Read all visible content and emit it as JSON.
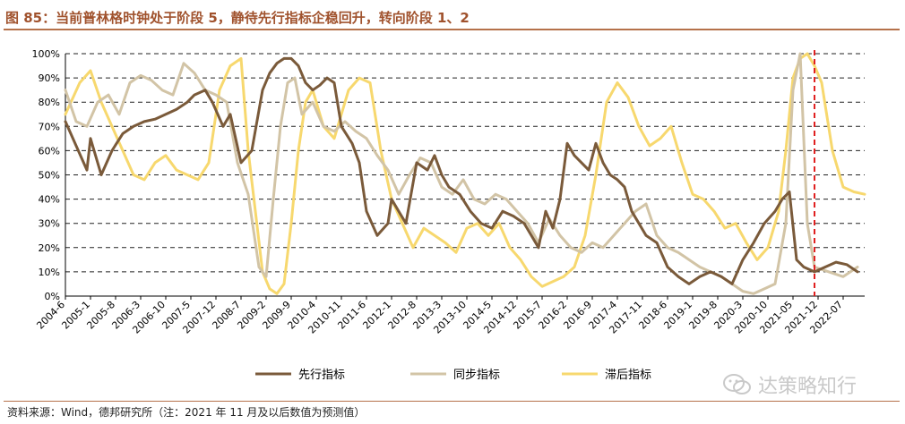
{
  "title": "图 85：当前普林格时钟处于阶段 5，静待先行指标企稳回升，转向阶段 1、2",
  "source": "资料来源：Wind，德邦研究所（注：2021 年 11 月及以后数值为预测值）",
  "watermark": "达策略知行",
  "colors": {
    "leading": "#7a5a3a",
    "coincident": "#d2c4a6",
    "lagging": "#f7d86e",
    "marker": "#e02020",
    "grid": "#222222"
  },
  "chart_data": {
    "type": "line",
    "title": "图 85：当前普林格时钟处于阶段 5，静待先行指标企稳回升，转向阶段 1、2",
    "ylim": [
      0,
      100
    ],
    "y_ticks": [
      "0%",
      "10%",
      "20%",
      "30%",
      "40%",
      "50%",
      "60%",
      "70%",
      "80%",
      "90%",
      "100%"
    ],
    "x_ticks": [
      "2004-6",
      "2005-1",
      "2005-8",
      "2006-3",
      "2006-10",
      "2007-5",
      "2007-12",
      "2008-7",
      "2009-2",
      "2009-9",
      "2010-4",
      "2010-11",
      "2011-6",
      "2012-1",
      "2012-8",
      "2013-3",
      "2013-10",
      "2014-5",
      "2014-12",
      "2015-7",
      "2016-2",
      "2016-9",
      "2017-4",
      "2017-11",
      "2018-6",
      "2019-1",
      "2019-8",
      "2020-3",
      "2020-10",
      "2021-05",
      "2021-12",
      "2022-07"
    ],
    "x_range": [
      "2004-6",
      "2023-1"
    ],
    "grid": "horizontal dashed",
    "legend_position": "bottom",
    "marker_line": {
      "x": "2021-11",
      "style": "red dashed vertical"
    },
    "series": [
      {
        "name": "先行指标",
        "x": [
          "2004-6",
          "2004-9",
          "2004-12",
          "2005-1",
          "2005-4",
          "2005-7",
          "2005-10",
          "2006-1",
          "2006-4",
          "2006-7",
          "2006-10",
          "2007-1",
          "2007-4",
          "2007-6",
          "2007-9",
          "2007-11",
          "2008-2",
          "2008-4",
          "2008-7",
          "2008-10",
          "2009-1",
          "2009-3",
          "2009-5",
          "2009-7",
          "2009-9",
          "2009-11",
          "2010-1",
          "2010-3",
          "2010-5",
          "2010-7",
          "2010-9",
          "2010-11",
          "2011-2",
          "2011-4",
          "2011-6",
          "2011-9",
          "2011-12",
          "2012-1",
          "2012-3",
          "2012-5",
          "2012-8",
          "2012-11",
          "2013-1",
          "2013-3",
          "2013-5",
          "2013-8",
          "2013-11",
          "2014-2",
          "2014-5",
          "2014-8",
          "2014-11",
          "2015-2",
          "2015-4",
          "2015-6",
          "2015-8",
          "2015-10",
          "2015-12",
          "2016-2",
          "2016-4",
          "2016-6",
          "2016-8",
          "2016-10",
          "2016-12",
          "2017-2",
          "2017-4",
          "2017-6",
          "2017-8",
          "2017-10",
          "2017-12",
          "2018-3",
          "2018-6",
          "2018-9",
          "2018-12",
          "2019-3",
          "2019-6",
          "2019-9",
          "2019-12",
          "2020-3",
          "2020-6",
          "2020-9",
          "2020-12",
          "2021-2",
          "2021-4",
          "2021-6",
          "2021-8",
          "2021-11",
          "2022-2",
          "2022-5",
          "2022-8",
          "2022-11"
        ],
        "values": [
          72,
          62,
          52,
          65,
          50,
          60,
          67,
          70,
          72,
          73,
          75,
          77,
          80,
          83,
          85,
          80,
          70,
          75,
          55,
          60,
          85,
          92,
          96,
          98,
          98,
          95,
          88,
          85,
          87,
          90,
          88,
          70,
          63,
          55,
          35,
          25,
          30,
          40,
          35,
          30,
          55,
          52,
          58,
          50,
          45,
          42,
          35,
          30,
          28,
          35,
          33,
          30,
          25,
          20,
          35,
          28,
          40,
          63,
          58,
          55,
          52,
          63,
          55,
          50,
          48,
          45,
          35,
          30,
          25,
          22,
          12,
          8,
          5,
          8,
          10,
          8,
          5,
          15,
          22,
          30,
          35,
          40,
          43,
          15,
          12,
          10,
          12,
          14,
          13,
          10
        ]
      },
      {
        "name": "同步指标",
        "x": [
          "2004-6",
          "2004-9",
          "2004-12",
          "2005-3",
          "2005-6",
          "2005-9",
          "2005-12",
          "2006-3",
          "2006-6",
          "2006-9",
          "2006-12",
          "2007-3",
          "2007-6",
          "2007-9",
          "2007-12",
          "2008-3",
          "2008-6",
          "2008-9",
          "2008-12",
          "2009-2",
          "2009-4",
          "2009-6",
          "2009-8",
          "2009-10",
          "2009-12",
          "2010-3",
          "2010-6",
          "2010-9",
          "2010-12",
          "2011-3",
          "2011-6",
          "2011-9",
          "2011-12",
          "2012-3",
          "2012-6",
          "2012-9",
          "2012-12",
          "2013-3",
          "2013-6",
          "2013-9",
          "2013-12",
          "2014-3",
          "2014-6",
          "2014-9",
          "2014-12",
          "2015-3",
          "2015-6",
          "2015-9",
          "2015-12",
          "2016-3",
          "2016-6",
          "2016-9",
          "2016-12",
          "2017-3",
          "2017-6",
          "2017-9",
          "2017-12",
          "2018-3",
          "2018-6",
          "2018-9",
          "2018-12",
          "2019-3",
          "2019-6",
          "2019-9",
          "2019-12",
          "2020-3",
          "2020-6",
          "2020-9",
          "2020-12",
          "2021-3",
          "2021-5",
          "2021-7",
          "2021-9",
          "2021-11",
          "2022-3",
          "2022-7",
          "2022-11"
        ],
        "values": [
          85,
          72,
          70,
          80,
          83,
          75,
          88,
          91,
          89,
          85,
          83,
          96,
          92,
          85,
          83,
          80,
          55,
          42,
          12,
          8,
          40,
          70,
          88,
          90,
          75,
          80,
          70,
          68,
          72,
          68,
          65,
          58,
          52,
          42,
          50,
          57,
          55,
          45,
          42,
          48,
          40,
          38,
          42,
          40,
          35,
          30,
          22,
          32,
          25,
          20,
          18,
          22,
          20,
          25,
          30,
          35,
          38,
          25,
          20,
          18,
          15,
          12,
          10,
          8,
          5,
          2,
          1,
          3,
          5,
          30,
          85,
          100,
          30,
          12,
          10,
          8,
          12
        ]
      },
      {
        "name": "滞后指标",
        "x": [
          "2004-6",
          "2004-10",
          "2005-1",
          "2005-4",
          "2005-7",
          "2005-10",
          "2006-1",
          "2006-4",
          "2006-7",
          "2006-10",
          "2007-1",
          "2007-4",
          "2007-7",
          "2007-10",
          "2008-1",
          "2008-4",
          "2008-7",
          "2008-9",
          "2008-11",
          "2009-1",
          "2009-3",
          "2009-5",
          "2009-7",
          "2009-9",
          "2009-11",
          "2010-1",
          "2010-3",
          "2010-6",
          "2010-9",
          "2011-1",
          "2011-4",
          "2011-7",
          "2011-10",
          "2012-1",
          "2012-4",
          "2012-7",
          "2012-10",
          "2013-1",
          "2013-4",
          "2013-7",
          "2013-10",
          "2014-1",
          "2014-4",
          "2014-7",
          "2014-10",
          "2015-1",
          "2015-4",
          "2015-7",
          "2015-10",
          "2016-1",
          "2016-4",
          "2016-7",
          "2016-10",
          "2017-1",
          "2017-4",
          "2017-7",
          "2017-10",
          "2018-1",
          "2018-4",
          "2018-7",
          "2018-10",
          "2019-1",
          "2019-4",
          "2019-7",
          "2019-10",
          "2020-1",
          "2020-4",
          "2020-7",
          "2020-10",
          "2021-1",
          "2021-3",
          "2021-5",
          "2021-7",
          "2021-9",
          "2021-11",
          "2022-1",
          "2022-4",
          "2022-7",
          "2022-10",
          "2023-1"
        ],
        "values": [
          75,
          88,
          93,
          80,
          70,
          60,
          50,
          48,
          55,
          58,
          52,
          50,
          48,
          55,
          85,
          95,
          98,
          60,
          35,
          10,
          3,
          1,
          5,
          30,
          60,
          80,
          85,
          70,
          65,
          85,
          90,
          88,
          60,
          40,
          30,
          20,
          28,
          25,
          22,
          18,
          28,
          30,
          25,
          30,
          20,
          15,
          8,
          4,
          6,
          8,
          12,
          25,
          50,
          80,
          88,
          82,
          70,
          62,
          65,
          70,
          55,
          42,
          40,
          35,
          28,
          30,
          22,
          15,
          20,
          35,
          60,
          90,
          98,
          100,
          95,
          88,
          60,
          45,
          43,
          42
        ]
      }
    ]
  },
  "legend": [
    {
      "label": "先行指标",
      "color": "#7a5a3a"
    },
    {
      "label": "同步指标",
      "color": "#d2c4a6"
    },
    {
      "label": "滞后指标",
      "color": "#f7d86e"
    }
  ]
}
